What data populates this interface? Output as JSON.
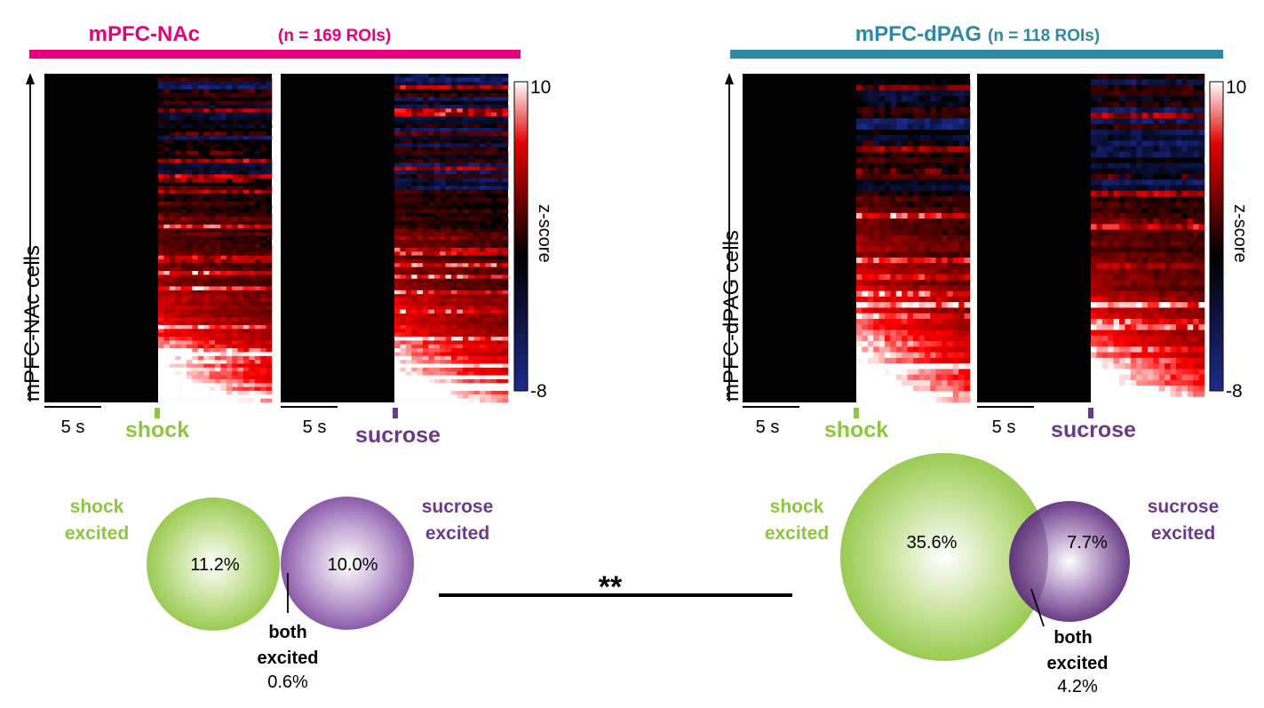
{
  "colors": {
    "nac": "#e6007e",
    "dpag": "#2e8aa3",
    "shock": "#8dc63f",
    "sucrose": "#6b3a8c",
    "heat_low": "#1c2a8a",
    "heat_mid": "#000000",
    "heat_high": "#e00000",
    "heat_max": "#ffffff"
  },
  "panels": [
    {
      "title_main": "mPFC-NAc",
      "title_n": "(n = 169 ROIs)",
      "ylabel": "mPFC-NAc cells",
      "shock_label": "shock",
      "sucrose_label": "sucrose",
      "scalebar_shock": "5 s",
      "scalebar_sucrose": "5 s",
      "colorbar": {
        "label": "z-score",
        "max_label": "10",
        "min_label": "-8"
      },
      "venn": {
        "shock_label_1": "shock",
        "shock_label_2": "excited",
        "sucrose_label_1": "sucrose",
        "sucrose_label_2": "excited",
        "shock_pct": "11.2%",
        "sucrose_pct": "10.0%",
        "both_label_1": "both",
        "both_label_2": "excited",
        "both_pct": "0.6%"
      }
    },
    {
      "title_main": "mPFC-dPAG",
      "title_n": "(n = 118 ROIs)",
      "ylabel": "mPFC-dPAG cells",
      "shock_label": "shock",
      "sucrose_label": "sucrose",
      "scalebar_shock": "5 s",
      "scalebar_sucrose": "5 s",
      "colorbar": {
        "label": "z-score",
        "max_label": "10",
        "min_label": "-8"
      },
      "venn": {
        "shock_label_1": "shock",
        "shock_label_2": "excited",
        "sucrose_label_1": "sucrose",
        "sucrose_label_2": "excited",
        "shock_pct": "35.6%",
        "sucrose_pct": "7.7%",
        "both_label_1": "both",
        "both_label_2": "excited",
        "both_pct": "4.2%"
      }
    }
  ],
  "significance": "**",
  "chart_data": [
    {
      "type": "heatmap",
      "title": "mPFC-NAc (n = 169 ROIs)",
      "ylabel": "mPFC-NAc cells",
      "panels": [
        "shock",
        "sucrose"
      ],
      "rows": 169,
      "zlim": [
        -8,
        10
      ],
      "colorbar_label": "z-score",
      "scale_bar": "5 s",
      "venn_percent": {
        "shock_excited": 11.2,
        "sucrose_excited": 10.0,
        "both_excited": 0.6
      }
    },
    {
      "type": "heatmap",
      "title": "mPFC-dPAG (n = 118 ROIs)",
      "ylabel": "mPFC-dPAG cells",
      "panels": [
        "shock",
        "sucrose"
      ],
      "rows": 118,
      "zlim": [
        -8,
        10
      ],
      "colorbar_label": "z-score",
      "scale_bar": "5 s",
      "venn_percent": {
        "shock_excited": 35.6,
        "sucrose_excited": 7.7,
        "both_excited": 4.2
      },
      "comparison_significance": "**"
    }
  ]
}
